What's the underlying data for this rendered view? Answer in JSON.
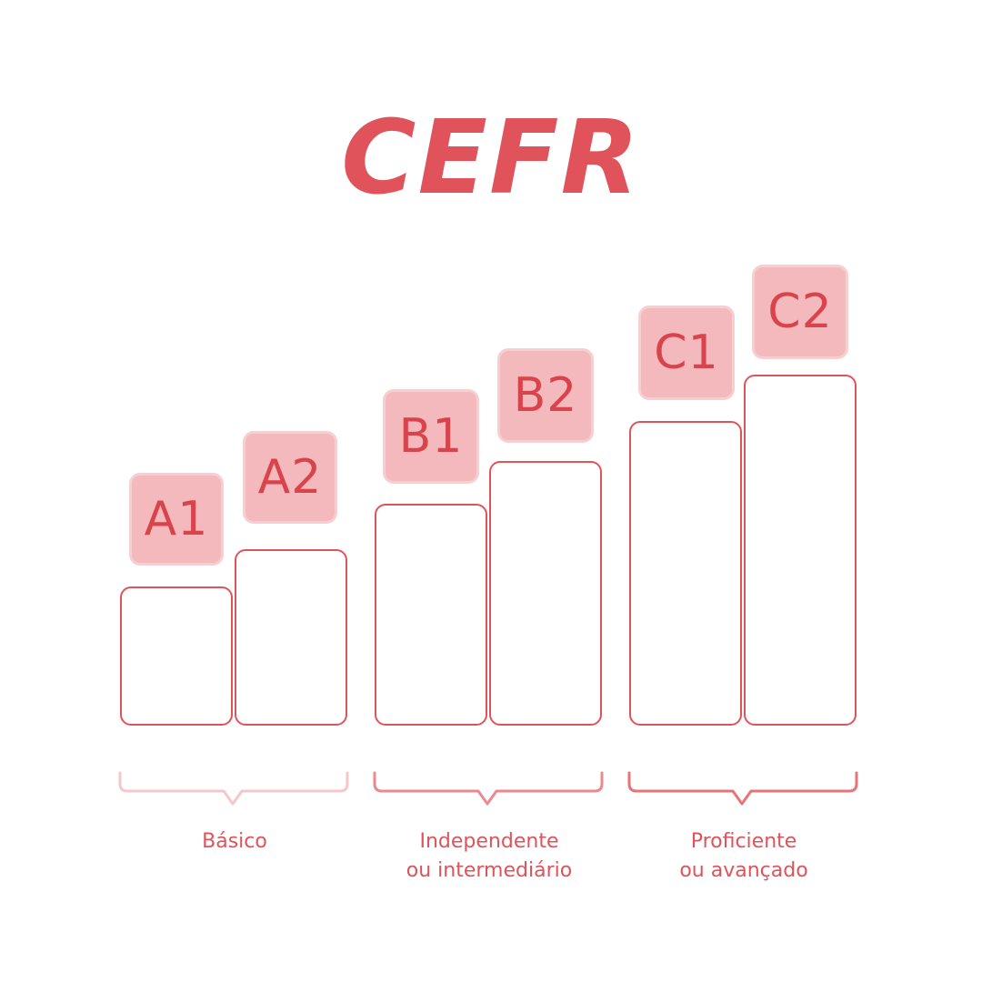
{
  "title": "CEFR",
  "colors": {
    "accent": "#e0535a",
    "badge_fill": "#f4b9bc",
    "badge_text": "#d9434b"
  },
  "levels": [
    {
      "code": "A1",
      "rank": 1
    },
    {
      "code": "A2",
      "rank": 2
    },
    {
      "code": "B1",
      "rank": 3
    },
    {
      "code": "B2",
      "rank": 4
    },
    {
      "code": "C1",
      "rank": 5
    },
    {
      "code": "C2",
      "rank": 6
    }
  ],
  "groups": [
    {
      "line1": "Básico",
      "line2": ""
    },
    {
      "line1": "Independente",
      "line2": "ou intermediário"
    },
    {
      "line1": "Proficiente",
      "line2": "ou avançado"
    }
  ]
}
